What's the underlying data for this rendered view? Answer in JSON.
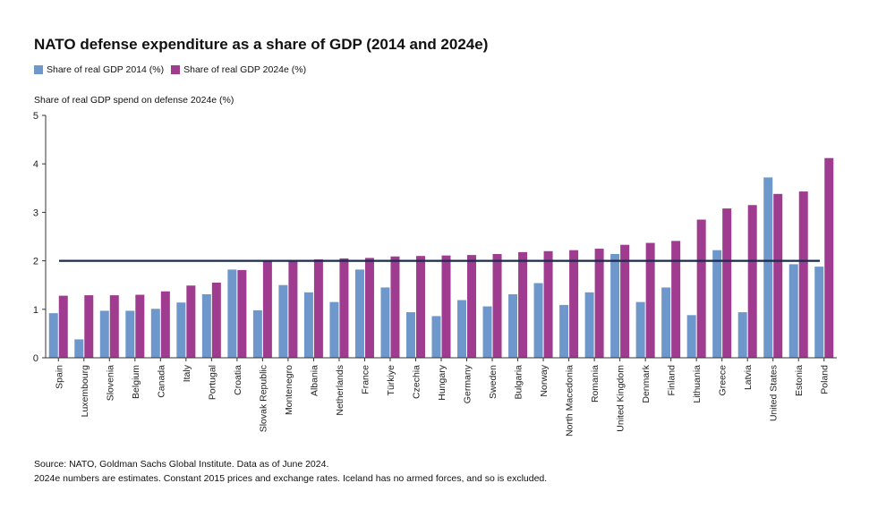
{
  "chart_data": {
    "type": "bar",
    "title": "NATO defense expenditure as a share of GDP (2014 and 2024e)",
    "ylabel": "Share of real GDP spend on defense 2024e (%)",
    "xlabel": "",
    "ylim": [
      0,
      5
    ],
    "yticks": [
      "0",
      "1",
      "2",
      "3",
      "4",
      "5"
    ],
    "reference_line": 2,
    "categories": [
      "Spain",
      "Luxembourg",
      "Slovenia",
      "Belgium",
      "Canada",
      "Italy",
      "Portugal",
      "Croatia",
      "Slovak Republic",
      "Montenegro",
      "Albania",
      "Netherlands",
      "France",
      "Türkiye",
      "Czechia",
      "Hungary",
      "Germany",
      "Sweden",
      "Bulgaria",
      "Norway",
      "North Macedonia",
      "Romania",
      "United Kingdom",
      "Denmark",
      "Finland",
      "Lithuania",
      "Greece",
      "Latvia",
      "United States",
      "Estonia",
      "Poland"
    ],
    "series": [
      {
        "name": "Share of real GDP 2014 (%)",
        "color": "#6e98cc",
        "values": [
          0.92,
          0.38,
          0.97,
          0.97,
          1.01,
          1.14,
          1.31,
          1.82,
          0.98,
          1.5,
          1.35,
          1.15,
          1.82,
          1.45,
          0.94,
          0.86,
          1.19,
          1.06,
          1.31,
          1.54,
          1.09,
          1.35,
          2.14,
          1.15,
          1.45,
          0.88,
          2.22,
          0.94,
          3.72,
          1.93,
          1.88
        ]
      },
      {
        "name": "Share of real GDP 2024e (%)",
        "color": "#a03c8f",
        "values": [
          1.28,
          1.29,
          1.29,
          1.3,
          1.37,
          1.49,
          1.55,
          1.81,
          2.0,
          2.0,
          2.03,
          2.05,
          2.06,
          2.09,
          2.1,
          2.11,
          2.12,
          2.14,
          2.18,
          2.2,
          2.22,
          2.25,
          2.33,
          2.37,
          2.41,
          2.85,
          3.08,
          3.15,
          3.38,
          3.43,
          4.12
        ]
      }
    ]
  },
  "source_line1": "Source: NATO, Goldman Sachs Global Institute. Data as of June 2024.",
  "source_line2": "2024e numbers are estimates. Constant 2015 prices and exchange rates. Iceland has no armed forces, and so is excluded.",
  "colors": {
    "axis": "#333333",
    "reference": "#1b2a4e"
  }
}
